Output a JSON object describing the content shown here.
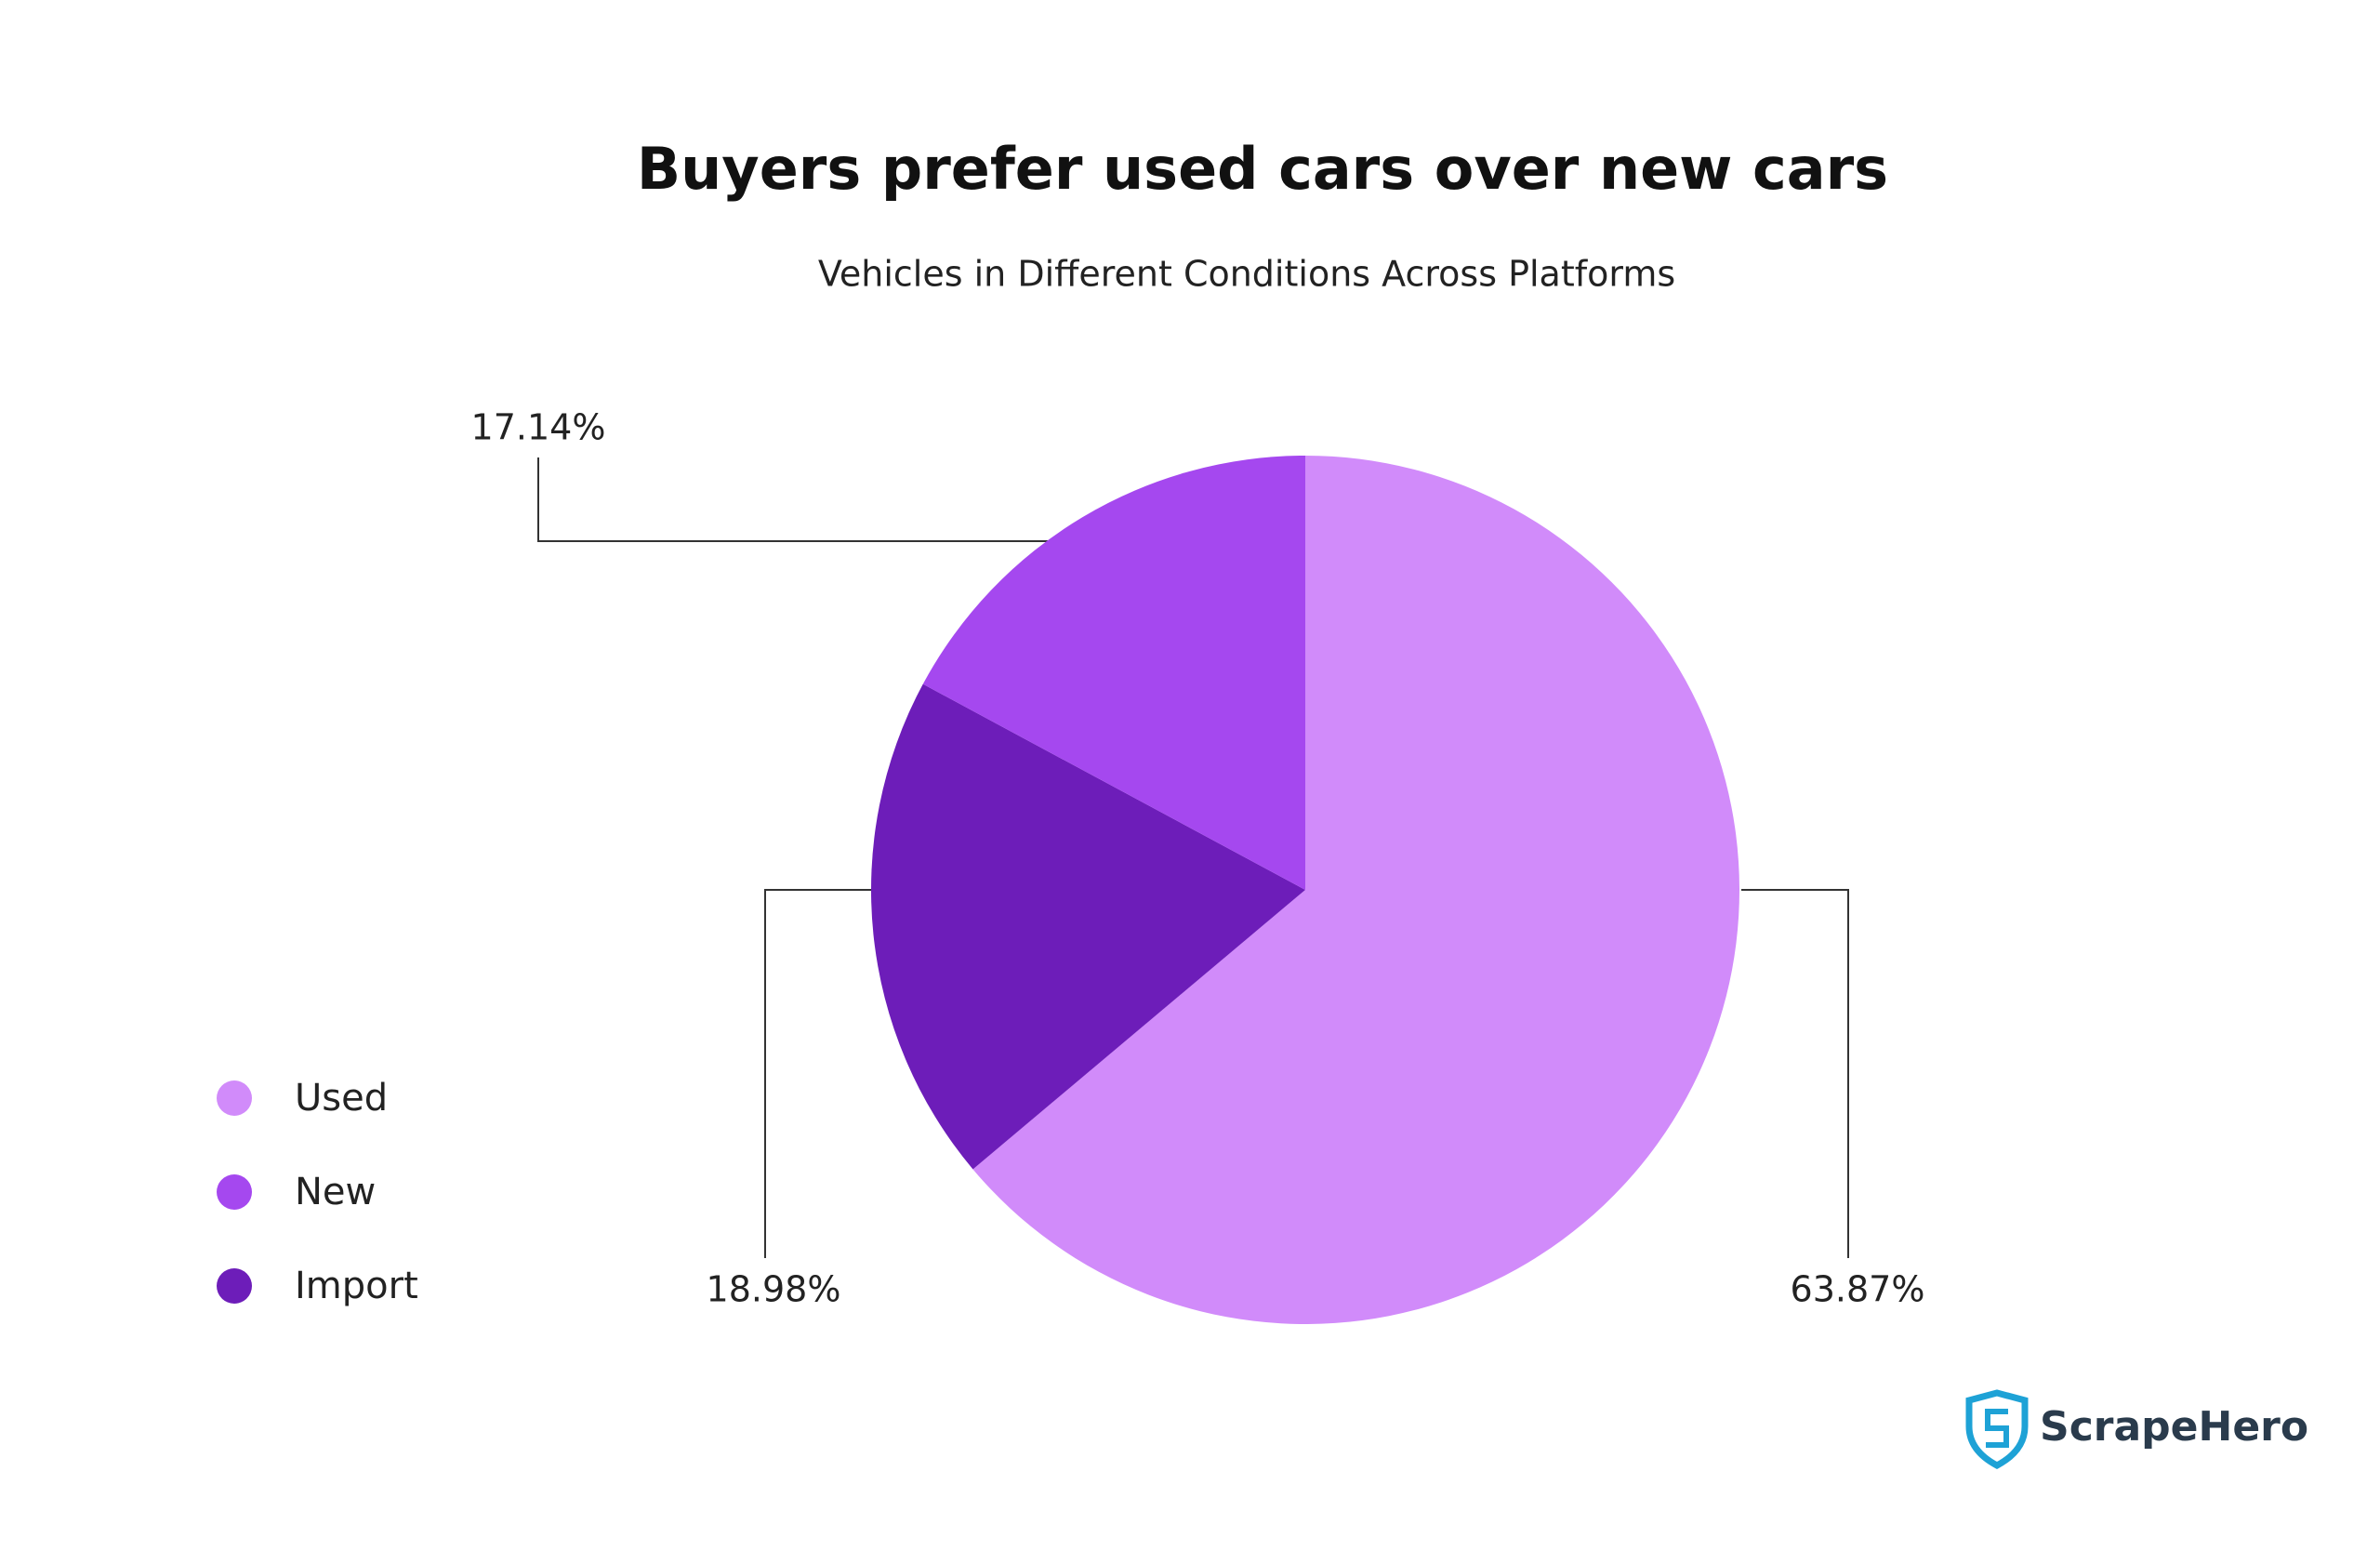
{
  "chart_data": {
    "type": "pie",
    "title": "Buyers prefer used cars over new cars",
    "subtitle": "Vehicles in Different Conditions Across Platforms",
    "categories": [
      "Used",
      "New",
      "Import"
    ],
    "values": [
      63.87,
      17.14,
      18.98
    ],
    "value_labels": [
      "63.87%",
      "17.14%",
      "18.98%"
    ],
    "colors": [
      "#d18bfa",
      "#a548ef",
      "#6d1db9"
    ],
    "legend": "left"
  },
  "logo": {
    "text": "ScrapeHero"
  }
}
